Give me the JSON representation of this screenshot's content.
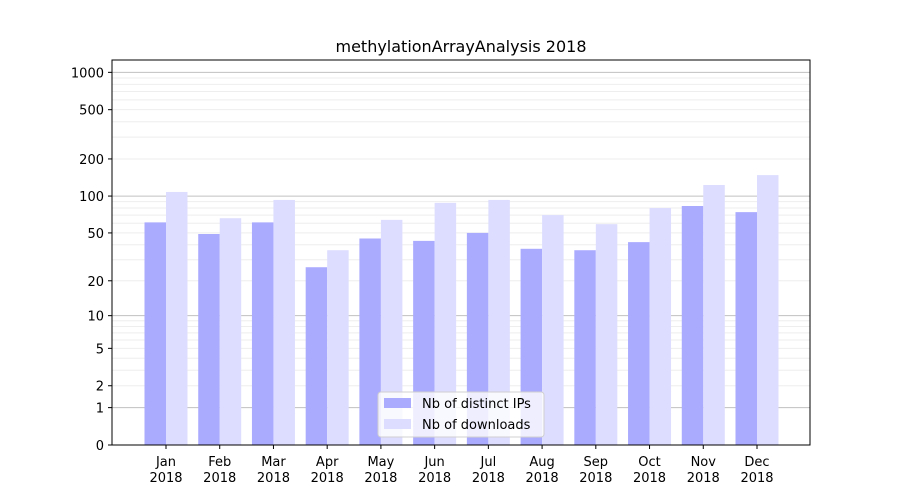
{
  "chart_data": {
    "type": "bar",
    "title": "methylationArrayAnalysis 2018",
    "xlabel": "",
    "ylabel": "",
    "yscale": "log(1+y)",
    "ylim": [
      0,
      1200
    ],
    "yticks": [
      0,
      1,
      2,
      5,
      10,
      20,
      50,
      100,
      200,
      500,
      1000
    ],
    "categories": [
      "Jan\n2018",
      "Feb\n2018",
      "Mar\n2018",
      "Apr\n2018",
      "May\n2018",
      "Jun\n2018",
      "Jul\n2018",
      "Aug\n2018",
      "Sep\n2018",
      "Oct\n2018",
      "Nov\n2018",
      "Dec\n2018"
    ],
    "series": [
      {
        "name": "Nb of distinct IPs",
        "color": "#aaaaff",
        "values": [
          61,
          49,
          61,
          26,
          45,
          43,
          50,
          37,
          36,
          42,
          83,
          74
        ]
      },
      {
        "name": "Nb of downloads",
        "color": "#ddddff",
        "values": [
          108,
          66,
          93,
          36,
          64,
          88,
          93,
          70,
          59,
          80,
          123,
          148
        ]
      }
    ],
    "grid": true,
    "legend_position": "lower-center"
  }
}
